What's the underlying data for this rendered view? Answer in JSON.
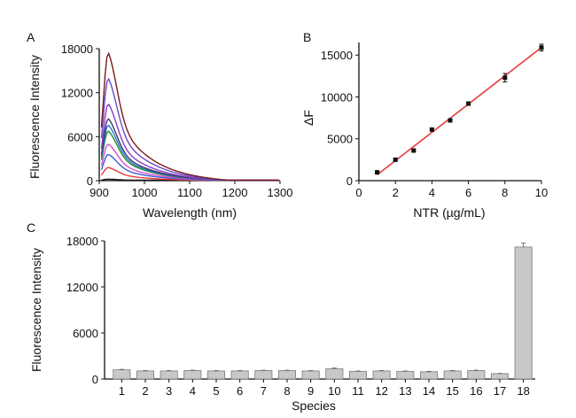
{
  "colors": {
    "axis": "#111111",
    "fit_line": "#e8393a",
    "bar_fill": "#c8c8c8",
    "bar_stroke": "#7a7a7a",
    "spectra": [
      "#111111",
      "#e8393a",
      "#3b5bd9",
      "#d94fd0",
      "#1f8f2a",
      "#2f6fd0",
      "#3a3a6a",
      "#8a3cc9",
      "#6a4bc9",
      "#7a1a1a"
    ]
  },
  "chart_data": [
    {
      "panel": "A",
      "type": "line",
      "xlabel": "Wavelength (nm)",
      "ylabel": "Fluorescence Intensity",
      "xlim": [
        900,
        1300
      ],
      "ylim": [
        0,
        18000
      ],
      "xticks": [
        900,
        1000,
        1100,
        1200,
        1300
      ],
      "yticks": [
        0,
        6000,
        12000,
        18000
      ],
      "series_peaks": [
        200,
        1800,
        3600,
        5000,
        6800,
        7600,
        8500,
        10500,
        14000,
        17500
      ]
    },
    {
      "panel": "B",
      "type": "scatter",
      "xlabel": "NTR (µg/mL)",
      "ylabel": "ΔF",
      "xlim": [
        0,
        10
      ],
      "ylim": [
        0,
        16500
      ],
      "xticks": [
        0,
        2,
        4,
        6,
        8,
        10
      ],
      "yticks": [
        0,
        5000,
        10000,
        15000
      ],
      "x": [
        1,
        2,
        3,
        4,
        5,
        6,
        8,
        10
      ],
      "y": [
        1000,
        2500,
        3600,
        6100,
        7200,
        9200,
        12300,
        15900
      ],
      "yerr": [
        100,
        150,
        150,
        180,
        200,
        200,
        500,
        400
      ],
      "fit": {
        "x": [
          1,
          10
        ],
        "y": [
          700,
          15900
        ]
      }
    },
    {
      "panel": "C",
      "type": "bar",
      "xlabel": "Species",
      "ylabel": "Fluorescence Intensity",
      "ylim": [
        0,
        18000
      ],
      "yticks": [
        0,
        6000,
        12000,
        18000
      ],
      "categories": [
        "1",
        "2",
        "3",
        "4",
        "5",
        "6",
        "7",
        "8",
        "9",
        "10",
        "11",
        "12",
        "13",
        "14",
        "15",
        "16",
        "17",
        "18"
      ],
      "values": [
        1200,
        1050,
        1050,
        1100,
        1050,
        1050,
        1100,
        1100,
        1050,
        1350,
        1000,
        1050,
        1000,
        950,
        1050,
        1100,
        700,
        17200
      ],
      "errors": [
        60,
        50,
        50,
        60,
        50,
        50,
        50,
        50,
        50,
        80,
        50,
        50,
        50,
        50,
        50,
        60,
        40,
        500
      ]
    }
  ]
}
